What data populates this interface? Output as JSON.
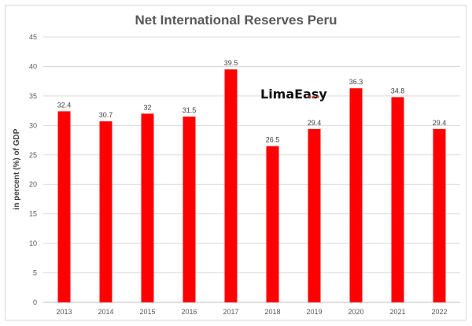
{
  "chart_data": {
    "type": "bar",
    "title": "Net International Reserves Peru",
    "xlabel": "",
    "ylabel": "in percent (%) of GDP",
    "categories": [
      "2013",
      "2014",
      "2015",
      "2016",
      "2017",
      "2018",
      "2019",
      "2020",
      "2021",
      "2022"
    ],
    "values": [
      32.4,
      30.7,
      32,
      31.5,
      39.5,
      26.5,
      29.4,
      36.3,
      34.8,
      29.4
    ],
    "ylim": [
      0,
      45
    ],
    "yticks": [
      0,
      5,
      10,
      15,
      20,
      25,
      30,
      35,
      40,
      45
    ],
    "grid": true,
    "legend": "none",
    "bar_color": "#ff0000",
    "data_labels": true
  },
  "watermark": {
    "text": "LimaEasy"
  }
}
